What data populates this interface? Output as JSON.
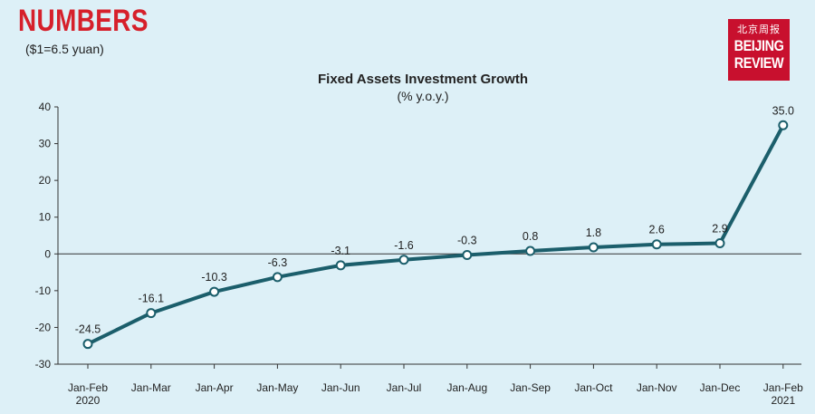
{
  "header": {
    "title": "NUMBERS",
    "exchange_note": "($1=6.5 yuan)",
    "logo_cn": "北京周报",
    "logo_en_line1": "BEIJING",
    "logo_en_line2": "REVIEW"
  },
  "colors": {
    "background": "#ddf0f7",
    "line": "#1b5e6b",
    "accent": "#d6202b"
  },
  "chart_data": {
    "type": "line",
    "title": "Fixed Assets Investment Growth",
    "subtitle": "(% y.o.y.)",
    "categories": [
      [
        "Jan-Feb",
        "2020"
      ],
      [
        "Jan-Mar"
      ],
      [
        "Jan-Apr"
      ],
      [
        "Jan-May"
      ],
      [
        "Jan-Jun"
      ],
      [
        "Jan-Jul"
      ],
      [
        "Jan-Aug"
      ],
      [
        "Jan-Sep"
      ],
      [
        "Jan-Oct"
      ],
      [
        "Jan-Nov"
      ],
      [
        "Jan-Dec"
      ],
      [
        "Jan-Feb",
        "2021"
      ]
    ],
    "values": [
      -24.5,
      -16.1,
      -10.3,
      -6.3,
      -3.1,
      -1.6,
      -0.3,
      0.8,
      1.8,
      2.6,
      2.9,
      35.0
    ],
    "data_labels": [
      "-24.5",
      "-16.1",
      "-10.3",
      "-6.3",
      "-3.1",
      "-1.6",
      "-0.3",
      "0.8",
      "1.8",
      "2.6",
      "2.9",
      "35.0"
    ],
    "ylim": [
      -30,
      40
    ],
    "yticks": [
      "40",
      "30",
      "20",
      "10",
      "0",
      "-10",
      "-20",
      "-30"
    ],
    "grid": false
  }
}
